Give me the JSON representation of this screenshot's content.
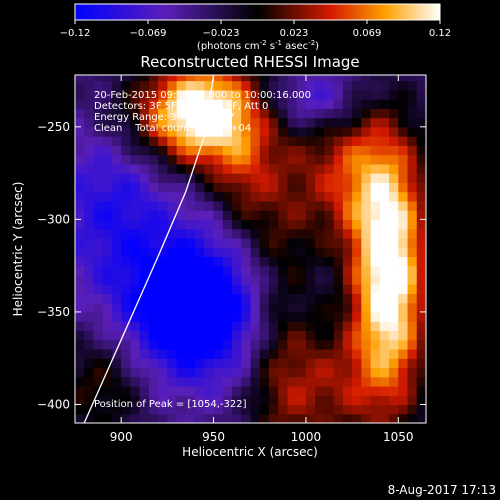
{
  "chart_data": {
    "type": "heatmap",
    "title": "Reconstructed RHESSI Image",
    "xlabel": "Heliocentric X (arcsec)",
    "ylabel": "Heliocentric Y (arcsec)",
    "xlim": [
      875,
      1065
    ],
    "ylim": [
      -410,
      -222
    ],
    "x_ticks": [
      900,
      950,
      1000,
      1050
    ],
    "y_ticks": [
      -250,
      -300,
      -350,
      -400
    ],
    "colorbar": {
      "range": [
        -0.12,
        0.12
      ],
      "ticks": [
        "-0.12",
        "-0.069",
        "-0.023",
        "0.023",
        "0.069",
        "0.12"
      ],
      "unit_html": "(photons cm<tspan baseline-shift='super' font-size='7'>-2</tspan> s<tspan baseline-shift='super' font-size='7'>-1</tspan> asec<tspan baseline-shift='super' font-size='7'>-2</tspan>)"
    },
    "annotations": [
      "20-Feb-2015 09:50:16.000 to 10:00:16.000",
      "Detectors: 3F 5F 6F 7F 8F 9F, Att 0",
      "Energy Range: 3.0 - 6.0 keV",
      "Clean    Total counts: 9.36E+04"
    ],
    "peak_label": "Position of Peak = [1054,-322]",
    "limb_curve": [
      [
        880,
        -410
      ],
      [
        900,
        -365
      ],
      [
        920,
        -320
      ],
      [
        935,
        -285
      ],
      [
        945,
        -255
      ],
      [
        950,
        -222
      ]
    ],
    "blobs": [
      {
        "x": 945,
        "y": -242,
        "sx": 20,
        "sy": 20,
        "v": 0.15
      },
      {
        "x": 920,
        "y": -245,
        "sx": 25,
        "sy": 18,
        "v": 0.05
      },
      {
        "x": 1045,
        "y": -332,
        "sx": 14,
        "sy": 45,
        "v": 0.17
      },
      {
        "x": 1025,
        "y": -275,
        "sx": 22,
        "sy": 28,
        "v": 0.08
      },
      {
        "x": 1010,
        "y": -390,
        "sx": 25,
        "sy": 25,
        "v": 0.06
      },
      {
        "x": 985,
        "y": -335,
        "sx": 14,
        "sy": 65,
        "v": 0.05
      },
      {
        "x": 890,
        "y": -388,
        "sx": 18,
        "sy": 22,
        "v": 0.05
      },
      {
        "x": 965,
        "y": -275,
        "sx": 12,
        "sy": 25,
        "v": 0.05
      },
      {
        "x": 940,
        "y": -348,
        "sx": 28,
        "sy": 28,
        "v": -0.13
      },
      {
        "x": 895,
        "y": -290,
        "sx": 25,
        "sy": 35,
        "v": -0.06
      },
      {
        "x": 1005,
        "y": -235,
        "sx": 18,
        "sy": 12,
        "v": -0.06
      }
    ],
    "base_level": -0.035
  },
  "footer": {
    "timestamp": "8-Aug-2017 17:13"
  }
}
